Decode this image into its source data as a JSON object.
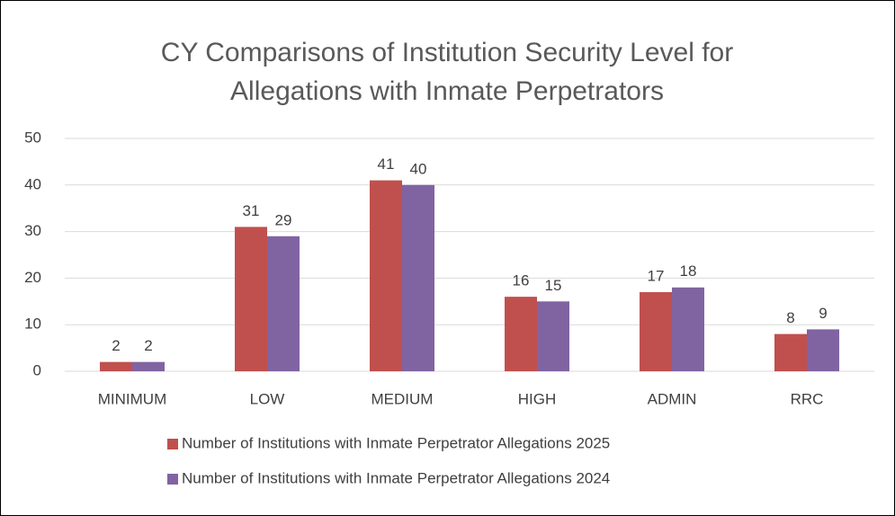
{
  "chart_data": {
    "type": "bar",
    "title": "CY Comparisons of Institution Security Level for Allegations with Inmate Perpetrators",
    "categories": [
      "MINIMUM",
      "LOW",
      "MEDIUM",
      "HIGH",
      "ADMIN",
      "RRC"
    ],
    "series": [
      {
        "name": "Number of Institutions with Inmate Perpetrator Allegations 2025",
        "color": "#c0504d",
        "values": [
          2,
          31,
          41,
          16,
          17,
          8
        ]
      },
      {
        "name": "Number of Institutions with Inmate Perpetrator Allegations 2024",
        "color": "#8064a2",
        "values": [
          2,
          29,
          40,
          15,
          18,
          9
        ]
      }
    ],
    "ylim": [
      0,
      50
    ],
    "yticks": [
      0,
      10,
      20,
      30,
      40,
      50
    ],
    "grid": true,
    "legend": "bottom"
  }
}
